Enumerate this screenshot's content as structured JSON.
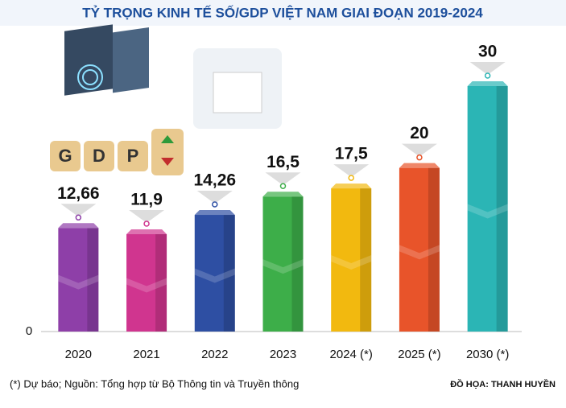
{
  "chart_data": {
    "type": "bar",
    "title": "TỶ TRỌNG KINH TẾ SỐ/GDP VIỆT NAM GIAI ĐOẠN 2019-2024",
    "categories": [
      "2020",
      "2021",
      "2022",
      "2023",
      "2024 (*)",
      "2025 (*)",
      "2030 (*)"
    ],
    "values": [
      12.66,
      11.9,
      14.26,
      16.5,
      17.5,
      20,
      30
    ],
    "value_labels": [
      "12,66",
      "11,9",
      "14,26",
      "16,5",
      "17,5",
      "20",
      "30"
    ],
    "colors": [
      "#8e3fa8",
      "#d0358f",
      "#2e4fa3",
      "#3dae49",
      "#f2b90f",
      "#e8542a",
      "#2bb5b5"
    ],
    "ylim": [
      0,
      30
    ],
    "yticks": [
      0
    ],
    "note": "(*) Dự báo;  Nguồn: Tổng hợp từ Bộ Thông tin và Truyền thông",
    "credit": "ĐỒ HỌA: THANH HUYỀN"
  },
  "decor": {
    "blocks": [
      "G",
      "D",
      "P"
    ]
  }
}
